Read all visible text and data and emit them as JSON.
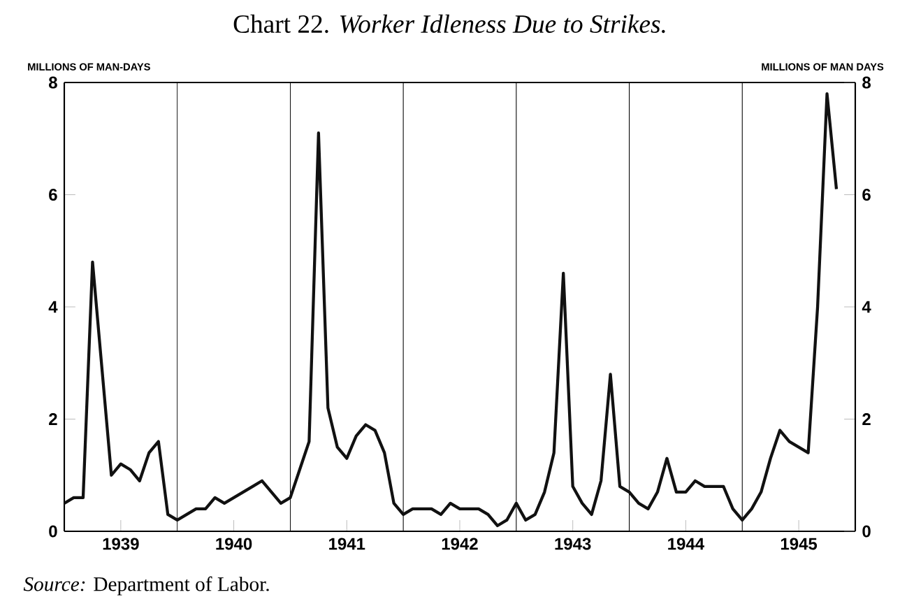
{
  "chart_data": {
    "type": "line",
    "title": "Chart 22. *Worker Idleness Due to Strikes.*",
    "ylabel": "MILLIONS OF MAN-DAYS",
    "y2label": "MILLIONS OF MAN DAYS",
    "annotations": [
      "*Source:* Department of Labor."
    ],
    "x": [
      "1939-01",
      "1939-02",
      "1939-03",
      "1939-04",
      "1939-05",
      "1939-06",
      "1939-07",
      "1939-08",
      "1939-09",
      "1939-10",
      "1939-11",
      "1939-12",
      "1940-01",
      "1940-02",
      "1940-03",
      "1940-04",
      "1940-05",
      "1940-06",
      "1940-07",
      "1940-08",
      "1940-09",
      "1940-10",
      "1940-11",
      "1940-12",
      "1941-01",
      "1941-02",
      "1941-03",
      "1941-04",
      "1941-05",
      "1941-06",
      "1941-07",
      "1941-08",
      "1941-09",
      "1941-10",
      "1941-11",
      "1941-12",
      "1942-01",
      "1942-02",
      "1942-03",
      "1942-04",
      "1942-05",
      "1942-06",
      "1942-07",
      "1942-08",
      "1942-09",
      "1942-10",
      "1942-11",
      "1942-12",
      "1943-01",
      "1943-02",
      "1943-03",
      "1943-04",
      "1943-05",
      "1943-06",
      "1943-07",
      "1943-08",
      "1943-09",
      "1943-10",
      "1943-11",
      "1943-12",
      "1944-01",
      "1944-02",
      "1944-03",
      "1944-04",
      "1944-05",
      "1944-06",
      "1944-07",
      "1944-08",
      "1944-09",
      "1944-10",
      "1944-11",
      "1944-12",
      "1945-01",
      "1945-02",
      "1945-03",
      "1945-04",
      "1945-05",
      "1945-06",
      "1945-07",
      "1945-08",
      "1945-09",
      "1945-10",
      "1945-11"
    ],
    "series": [
      {
        "color": "#111111",
        "values": [
          0.5,
          0.6,
          0.6,
          4.8,
          2.9,
          1.0,
          1.2,
          1.1,
          0.9,
          1.4,
          1.6,
          0.3,
          0.2,
          0.3,
          0.4,
          0.4,
          0.6,
          0.5,
          0.6,
          0.7,
          0.8,
          0.9,
          0.7,
          0.5,
          0.6,
          1.1,
          1.6,
          7.1,
          2.2,
          1.5,
          1.3,
          1.7,
          1.9,
          1.8,
          1.4,
          0.5,
          0.3,
          0.4,
          0.4,
          0.4,
          0.3,
          0.5,
          0.4,
          0.4,
          0.4,
          0.3,
          0.1,
          0.2,
          0.5,
          0.2,
          0.3,
          0.7,
          1.4,
          4.6,
          0.8,
          0.5,
          0.3,
          0.9,
          2.8,
          0.8,
          0.7,
          0.5,
          0.4,
          0.7,
          1.3,
          0.7,
          0.7,
          0.9,
          0.8,
          0.8,
          0.8,
          0.4,
          0.2,
          0.4,
          0.7,
          1.3,
          1.8,
          1.6,
          1.5,
          1.4,
          4.0,
          7.8,
          6.1
        ]
      }
    ],
    "xlim": [
      "1939-01-01",
      "1946-01-01"
    ],
    "xticks": [
      {
        "value": "1939-07-01",
        "label": "1939"
      },
      {
        "value": "1940-07-01",
        "label": "1940"
      },
      {
        "value": "1941-07-01",
        "label": "1941"
      },
      {
        "value": "1942-07-01",
        "label": "1942"
      },
      {
        "value": "1943-07-01",
        "label": "1943"
      },
      {
        "value": "1944-07-01",
        "label": "1944"
      },
      {
        "value": "1945-07-01",
        "label": "1945"
      }
    ],
    "ylim": [
      0,
      8
    ],
    "yticks": [
      0,
      2,
      4,
      6,
      8
    ],
    "y2lim": [
      0,
      8
    ],
    "y2ticks": [
      0,
      2,
      4,
      6,
      8
    ],
    "ref_lines": [
      {
        "axis": "x",
        "value": "1940-01-01"
      },
      {
        "axis": "x",
        "value": "1941-01-01"
      },
      {
        "axis": "x",
        "value": "1942-01-01"
      },
      {
        "axis": "x",
        "value": "1943-01-01"
      },
      {
        "axis": "x",
        "value": "1944-01-01"
      },
      {
        "axis": "x",
        "value": "1945-01-01"
      }
    ]
  }
}
